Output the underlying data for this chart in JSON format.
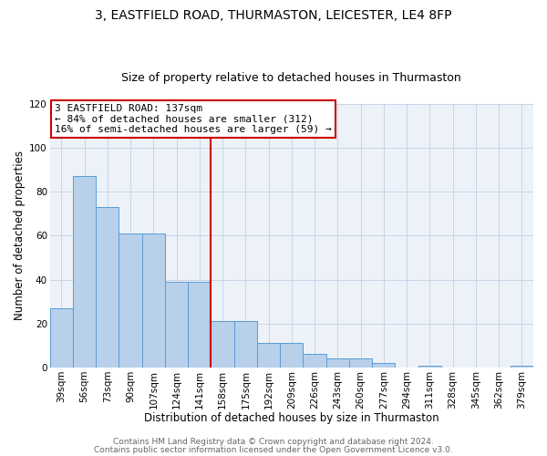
{
  "title": "3, EASTFIELD ROAD, THURMASTON, LEICESTER, LE4 8FP",
  "subtitle": "Size of property relative to detached houses in Thurmaston",
  "xlabel": "Distribution of detached houses by size in Thurmaston",
  "ylabel": "Number of detached properties",
  "categories": [
    "39sqm",
    "56sqm",
    "73sqm",
    "90sqm",
    "107sqm",
    "124sqm",
    "141sqm",
    "158sqm",
    "175sqm",
    "192sqm",
    "209sqm",
    "226sqm",
    "243sqm",
    "260sqm",
    "277sqm",
    "294sqm",
    "311sqm",
    "328sqm",
    "345sqm",
    "362sqm",
    "379sqm"
  ],
  "values": [
    27,
    87,
    73,
    61,
    61,
    39,
    39,
    21,
    21,
    11,
    11,
    6,
    4,
    4,
    2,
    0,
    1,
    0,
    0,
    0,
    1
  ],
  "bar_color": "#b8d0ea",
  "bar_edge_color": "#5b9bd5",
  "highlight_index": 6,
  "red_line_color": "#cc0000",
  "ylim": [
    0,
    120
  ],
  "annotation_line1": "3 EASTFIELD ROAD: 137sqm",
  "annotation_line2": "← 84% of detached houses are smaller (312)",
  "annotation_line3": "16% of semi-detached houses are larger (59) →",
  "annotation_box_color": "#ffffff",
  "annotation_box_edge": "#cc0000",
  "footer1": "Contains HM Land Registry data © Crown copyright and database right 2024.",
  "footer2": "Contains public sector information licensed under the Open Government Licence v3.0.",
  "title_fontsize": 10,
  "subtitle_fontsize": 9,
  "xlabel_fontsize": 8.5,
  "ylabel_fontsize": 8.5,
  "tick_fontsize": 7.5,
  "annotation_fontsize": 8,
  "footer_fontsize": 6.5,
  "background_color": "#ffffff",
  "plot_bg_color": "#edf2f9",
  "grid_color": "#c8d4e8"
}
